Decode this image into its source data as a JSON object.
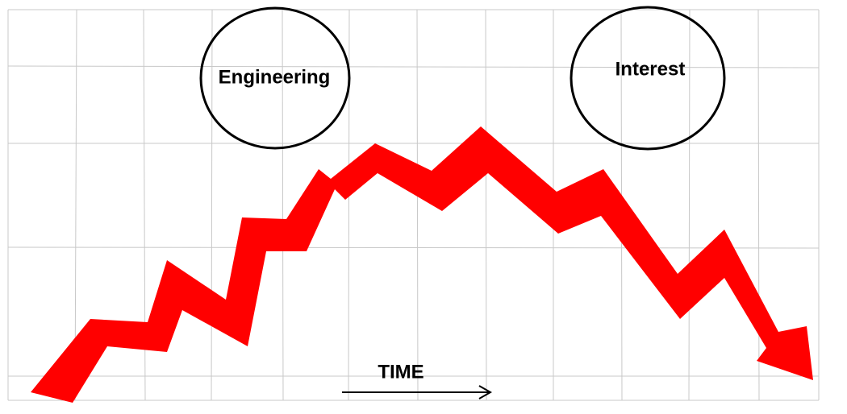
{
  "nodes": [
    {
      "label": "Engineering"
    },
    {
      "label": "Interest"
    }
  ],
  "axis": {
    "label": "TIME"
  }
}
